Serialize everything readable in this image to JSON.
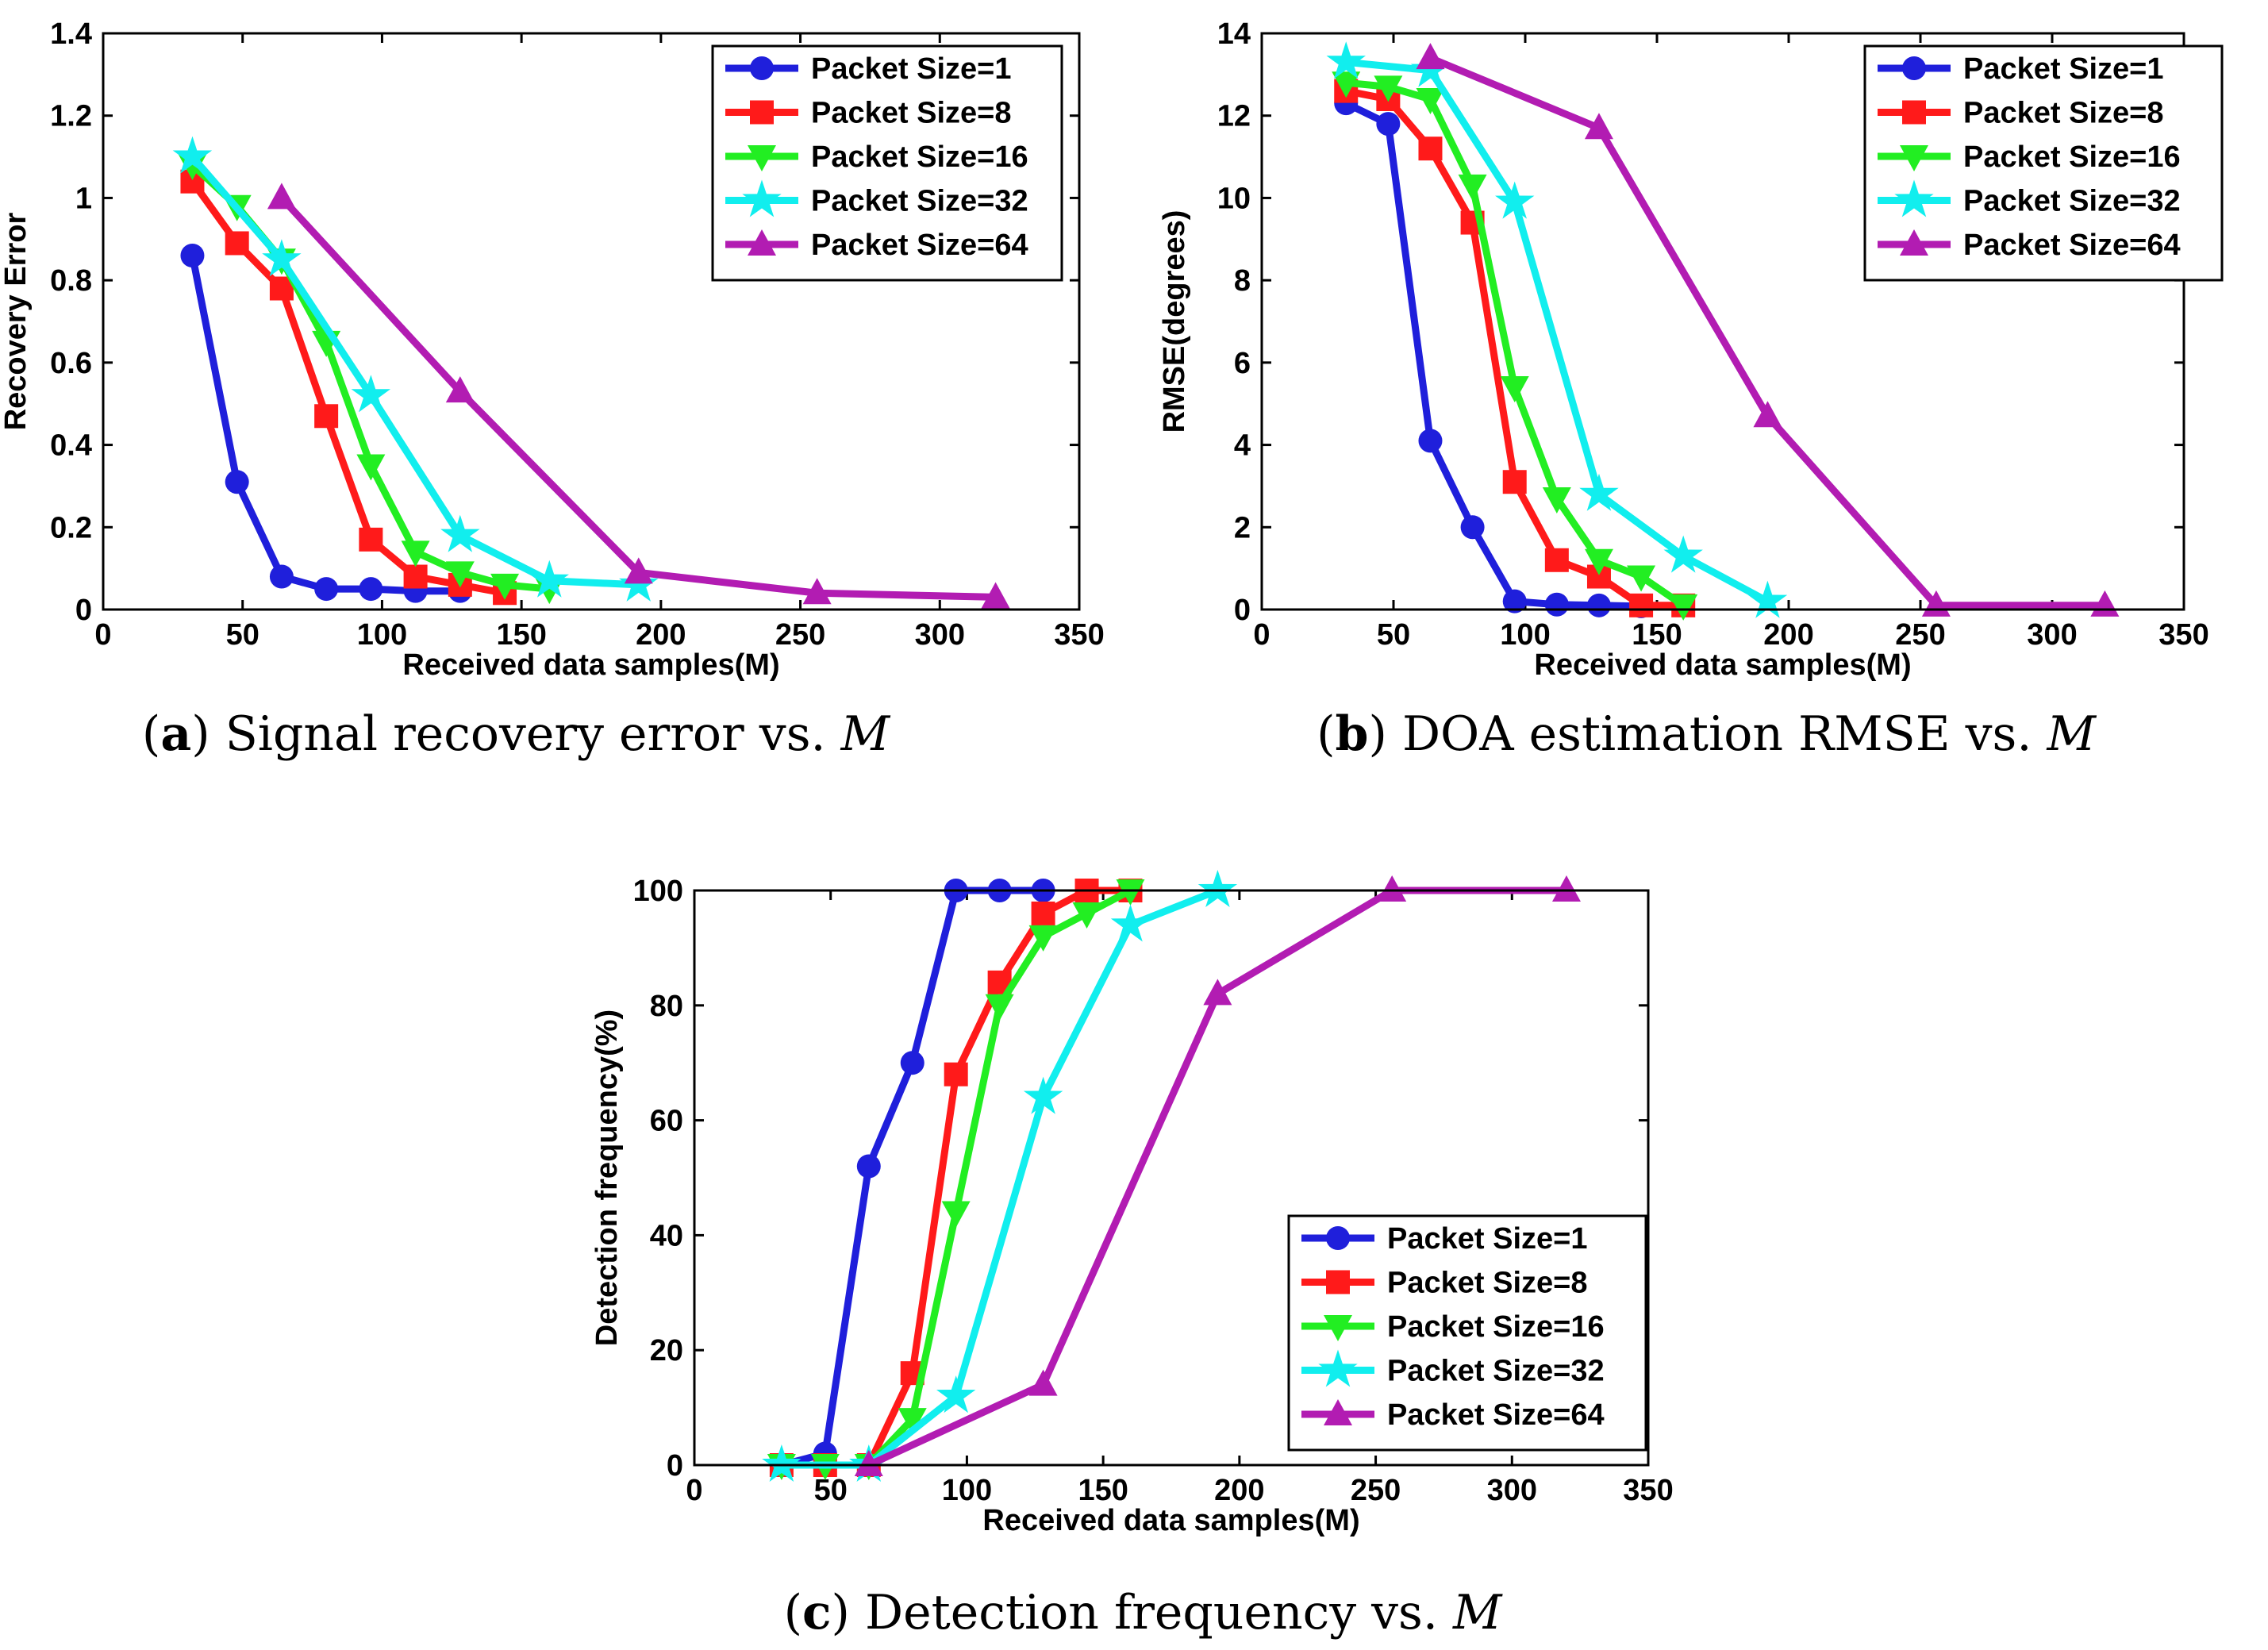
{
  "chart_data": [
    {
      "id": "a",
      "type": "line",
      "caption": {
        "letter": "a",
        "text": "Signal recovery error vs.",
        "math": "M"
      },
      "xlabel": "Received data samples(M)",
      "ylabel": "Recovery Error",
      "xlim": [
        0,
        350
      ],
      "ylim": [
        0,
        1.4
      ],
      "xticks": [
        0,
        50,
        100,
        150,
        200,
        250,
        300,
        350
      ],
      "yticks": [
        0,
        0.2,
        0.4,
        0.6,
        0.8,
        1,
        1.2,
        1.4
      ],
      "ytick_labels": [
        "0",
        "0.2",
        "0.4",
        "0.6",
        "0.8",
        "1",
        "1.2",
        "1.4"
      ],
      "legend_position": "top-right",
      "series": [
        {
          "name": "Packet Size=1",
          "color": "#1f1fdb",
          "marker": "circle",
          "x": [
            32,
            48,
            64,
            80,
            96,
            112,
            128
          ],
          "y": [
            0.86,
            0.31,
            0.08,
            0.05,
            0.05,
            0.045,
            0.045
          ]
        },
        {
          "name": "Packet Size=8",
          "color": "#ff1a1a",
          "marker": "square",
          "x": [
            32,
            48,
            64,
            80,
            96,
            112,
            128,
            144
          ],
          "y": [
            1.04,
            0.89,
            0.78,
            0.47,
            0.17,
            0.08,
            0.06,
            0.04
          ]
        },
        {
          "name": "Packet Size=16",
          "color": "#22ee22",
          "marker": "triangle-down",
          "x": [
            32,
            48,
            64,
            80,
            96,
            112,
            128,
            144,
            160
          ],
          "y": [
            1.08,
            0.98,
            0.85,
            0.65,
            0.35,
            0.14,
            0.09,
            0.06,
            0.05
          ]
        },
        {
          "name": "Packet Size=32",
          "color": "#11eeee",
          "marker": "star",
          "x": [
            32,
            64,
            96,
            128,
            160,
            192
          ],
          "y": [
            1.1,
            0.85,
            0.52,
            0.18,
            0.07,
            0.06
          ]
        },
        {
          "name": "Packet Size=64",
          "color": "#b21cb2",
          "marker": "triangle-up",
          "x": [
            64,
            128,
            192,
            256,
            320
          ],
          "y": [
            1.0,
            0.53,
            0.09,
            0.04,
            0.03
          ]
        }
      ]
    },
    {
      "id": "b",
      "type": "line",
      "caption": {
        "letter": "b",
        "text": "DOA estimation RMSE vs.",
        "math": "M"
      },
      "xlabel": "Received data samples(M)",
      "ylabel": "RMSE(degrees)",
      "xlim": [
        0,
        350
      ],
      "ylim": [
        0,
        14
      ],
      "xticks": [
        0,
        50,
        100,
        150,
        200,
        250,
        300,
        350
      ],
      "yticks": [
        0,
        2,
        4,
        6,
        8,
        10,
        12,
        14
      ],
      "ytick_labels": [
        "0",
        "2",
        "4",
        "6",
        "8",
        "10",
        "12",
        "14"
      ],
      "legend_position": "top-right",
      "series": [
        {
          "name": "Packet Size=1",
          "color": "#1f1fdb",
          "marker": "circle",
          "x": [
            32,
            48,
            64,
            80,
            96,
            112,
            128,
            144
          ],
          "y": [
            12.3,
            11.8,
            4.1,
            2.0,
            0.2,
            0.12,
            0.1,
            0.08
          ]
        },
        {
          "name": "Packet Size=8",
          "color": "#ff1a1a",
          "marker": "square",
          "x": [
            32,
            48,
            64,
            80,
            96,
            112,
            128,
            144,
            160
          ],
          "y": [
            12.6,
            12.4,
            11.2,
            9.4,
            3.1,
            1.2,
            0.8,
            0.1,
            0.1
          ]
        },
        {
          "name": "Packet Size=16",
          "color": "#22ee22",
          "marker": "triangle-down",
          "x": [
            32,
            48,
            64,
            80,
            96,
            112,
            128,
            144,
            160
          ],
          "y": [
            12.8,
            12.7,
            12.4,
            10.3,
            5.4,
            2.7,
            1.2,
            0.8,
            0.1
          ]
        },
        {
          "name": "Packet Size=32",
          "color": "#11eeee",
          "marker": "star",
          "x": [
            32,
            64,
            96,
            128,
            160,
            192
          ],
          "y": [
            13.3,
            13.1,
            9.9,
            2.8,
            1.3,
            0.2
          ]
        },
        {
          "name": "Packet Size=64",
          "color": "#b21cb2",
          "marker": "triangle-up",
          "x": [
            64,
            128,
            192,
            256,
            320
          ],
          "y": [
            13.4,
            11.7,
            4.7,
            0.1,
            0.1
          ]
        }
      ]
    },
    {
      "id": "c",
      "type": "line",
      "caption": {
        "letter": "c",
        "text": "Detection frequency vs.",
        "math": "M"
      },
      "xlabel": "Received data samples(M)",
      "ylabel": "Detection frequency(%)",
      "xlim": [
        0,
        350
      ],
      "ylim": [
        0,
        100
      ],
      "xticks": [
        0,
        50,
        100,
        150,
        200,
        250,
        300,
        350
      ],
      "yticks": [
        0,
        20,
        40,
        60,
        80,
        100
      ],
      "ytick_labels": [
        "0",
        "20",
        "40",
        "60",
        "80",
        "100"
      ],
      "legend_position": "bottom-right",
      "series": [
        {
          "name": "Packet Size=1",
          "color": "#1f1fdb",
          "marker": "circle",
          "x": [
            32,
            48,
            64,
            80,
            96,
            112,
            128
          ],
          "y": [
            0,
            2,
            52,
            70,
            100,
            100,
            100
          ]
        },
        {
          "name": "Packet Size=8",
          "color": "#ff1a1a",
          "marker": "square",
          "x": [
            32,
            48,
            64,
            80,
            96,
            112,
            128,
            144,
            160
          ],
          "y": [
            0,
            0,
            0,
            16,
            68,
            84,
            96,
            100,
            100
          ]
        },
        {
          "name": "Packet Size=16",
          "color": "#22ee22",
          "marker": "triangle-down",
          "x": [
            32,
            48,
            64,
            80,
            96,
            112,
            128,
            144,
            160
          ],
          "y": [
            0,
            0,
            0,
            8,
            44,
            80,
            92,
            96,
            100
          ]
        },
        {
          "name": "Packet Size=32",
          "color": "#11eeee",
          "marker": "star",
          "x": [
            32,
            64,
            96,
            128,
            160,
            192
          ],
          "y": [
            0,
            0,
            12,
            64,
            94,
            100
          ]
        },
        {
          "name": "Packet Size=64",
          "color": "#b21cb2",
          "marker": "triangle-up",
          "x": [
            64,
            128,
            192,
            256,
            320
          ],
          "y": [
            0,
            14,
            82,
            100,
            100
          ]
        }
      ]
    }
  ]
}
